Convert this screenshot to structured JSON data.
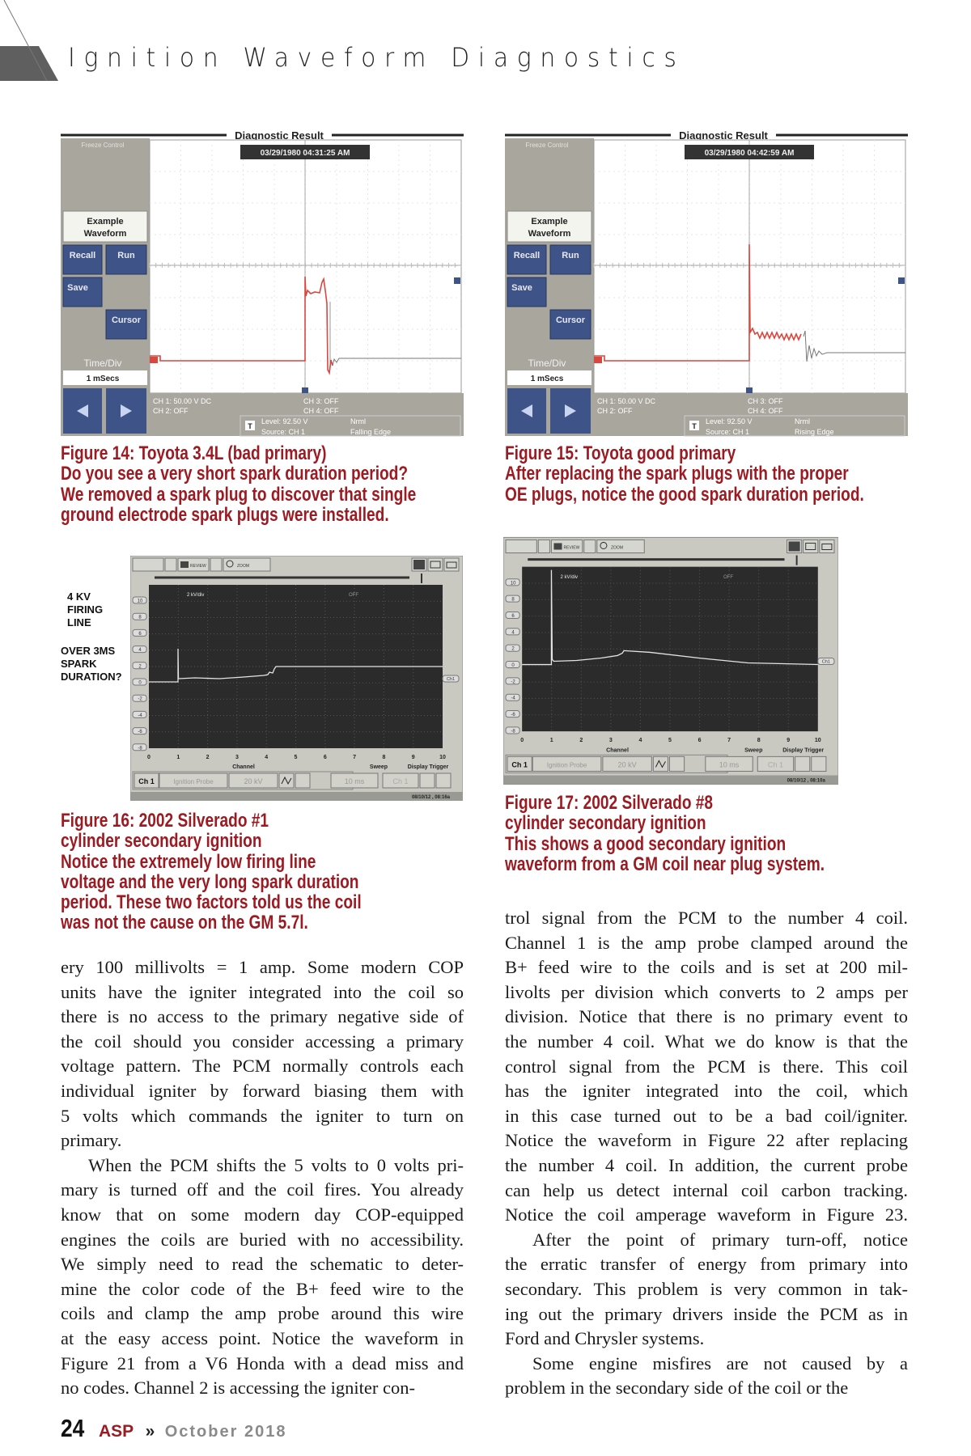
{
  "header": {
    "title": "Ignition Waveform Diagnostics"
  },
  "figures": {
    "fig14": {
      "caption": [
        "Figure 14: Toyota 3.4L (bad primary)",
        "Do you see a very short spark duration period?",
        "We removed a spark plug to discover that single",
        "ground electrode spark plugs were installed."
      ],
      "scope": {
        "header": "Diagnostic Result",
        "freeze": "Freeze Control",
        "timestamp": "03/29/1980 04:31:25 AM",
        "example1": "Example",
        "example2": "Waveform",
        "recall": "Recall",
        "run": "Run",
        "save": "Save",
        "cursor": "Cursor",
        "timediv": "Time/Div",
        "timediv_value": "1 mSecs",
        "ch1": "CH 1: 50.00 V DC",
        "ch2": "CH 2: OFF",
        "ch3": "CH 3: OFF",
        "ch4": "CH 4: OFF",
        "trig_icon": "T",
        "level": "Level: 92.50 V",
        "source": "Source: CH 1",
        "mode": "Nrml",
        "edge": "Falling Edge"
      }
    },
    "fig15": {
      "caption": [
        "Figure 15: Toyota good primary",
        "After replacing the spark plugs with the proper",
        "OE plugs, notice the good spark duration period."
      ],
      "scope": {
        "header": "Diagnostic Result",
        "freeze": "Freeze Control",
        "timestamp": "03/29/1980 04:42:59 AM",
        "example1": "Example",
        "example2": "Waveform",
        "recall": "Recall",
        "run": "Run",
        "save": "Save",
        "cursor": "Cursor",
        "timediv": "Time/Div",
        "timediv_value": "1 mSecs",
        "ch1": "CH 1: 50.00 V DC",
        "ch2": "CH 2: OFF",
        "ch3": "CH 3: OFF",
        "ch4": "CH 4: OFF",
        "trig_icon": "T",
        "level": "Level: 92.50 V",
        "source": "Source: CH 1",
        "mode": "Nrml",
        "edge": "Rising Edge"
      }
    },
    "fig16": {
      "notes": [
        [
          "4 KV",
          "FIRING",
          "LINE"
        ],
        [
          "OVER 3MS",
          "SPARK",
          "DURATION?"
        ]
      ],
      "caption": [
        "Figure 16: 2002 Silverado #1",
        "cylinder secondary ignition",
        "Notice the extremely low firing line",
        "voltage and the very long spark duration",
        "period. These two factors told us the coil",
        "was not the cause on the GM 5.7l."
      ],
      "scope": {
        "review": "REVIEW",
        "zoom": "ZOOM",
        "scale": "2 kV/div",
        "off": "OFF",
        "ch_marker": "Ch1",
        "x_ticks": [
          "0",
          "1",
          "2",
          "3",
          "4",
          "5",
          "6",
          "7",
          "8",
          "9",
          "10"
        ],
        "y_ticks": [
          "10",
          "8",
          "6",
          "4",
          "2",
          "0",
          "-2",
          "-4",
          "-6",
          "-8"
        ],
        "channel": "Channel",
        "sweep": "Sweep",
        "display_trigger": "Display Trigger",
        "ch_button": "Ch 1",
        "probe": "Ignition Probe",
        "range": "20 kV",
        "sweep_value": "10 ms",
        "trigger_ch": "Ch 1",
        "status": "08/10/12 , 08:16a"
      }
    },
    "fig17": {
      "caption": [
        "Figure 17: 2002 Silverado #8",
        "cylinder secondary ignition",
        "This shows a good secondary ignition",
        "waveform from a GM coil near plug system."
      ],
      "scope": {
        "review": "REVIEW",
        "zoom": "ZOOM",
        "scale": "2 kV/div",
        "off": "OFF",
        "ch_marker": "Ch1",
        "x_ticks": [
          "0",
          "1",
          "2",
          "3",
          "4",
          "5",
          "6",
          "7",
          "8",
          "9",
          "10"
        ],
        "y_ticks": [
          "10",
          "8",
          "6",
          "4",
          "2",
          "0",
          "-2",
          "-4",
          "-6",
          "-8"
        ],
        "channel": "Channel",
        "sweep": "Sweep",
        "display_trigger": "Display Trigger",
        "ch_button": "Ch 1",
        "probe": "Ignition Probe",
        "range": "20 kV",
        "sweep_value": "10 ms",
        "trigger_ch": "Ch 1",
        "status": "08/10/12 , 08:10a"
      }
    }
  },
  "body": {
    "left": [
      "ery 100 millivolts = 1 amp. Some modern COP",
      "units have the igniter integrated into the coil so",
      "there is no access to the primary negative side of",
      "the coil should you consider accessing a primary",
      "voltage pattern. The PCM normally controls each",
      "individual igniter by forward biasing them with",
      "5 volts which commands the igniter to turn on",
      "primary.",
      "When the PCM shifts the 5 volts to 0 volts pri-",
      "mary is turned off and the coil fires. You already",
      "know that on some modern day COP-equipped",
      "engines the coils are buried with no accessibility.",
      "We simply need to read the schematic to deter-",
      "mine the color code of the B+ feed wire to the",
      "coils and clamp the amp probe around this wire",
      "at the easy access point. Notice the waveform in",
      "Figure 21 from a V6 Honda with a dead miss and",
      "no codes. Channel 2 is accessing the igniter con-"
    ],
    "right": [
      "trol signal from the PCM to the number 4 coil.",
      "Channel 1 is the amp probe clamped around the",
      "B+ feed wire to the coils and is set at 200 mil-",
      "livolts per division which converts to 2 amps per",
      "division. Notice that there is no primary event to",
      "the number 4 coil. What we do know is that the",
      "control signal from the PCM is there. This coil",
      "has the igniter integrated into the coil, which",
      "in this case turned out to be a bad coil/igniter.",
      "Notice the waveform in Figure 22 after replacing",
      "the number 4 coil. In addition, the current probe",
      "can help us detect internal coil carbon tracking.",
      "Notice the coil amperage waveform in Figure 23.",
      "After the point of primary turn-off, notice",
      "the erratic transfer of energy from primary into",
      "secondary. This problem is very common in tak-",
      "ing out the primary drivers inside the PCM as in",
      "Ford and Chrysler systems.",
      "Some engine misfires are not caused by a",
      "problem in the secondary side of the coil or the"
    ]
  },
  "footer": {
    "page": "24",
    "magazine": "ASP",
    "separator": "»",
    "issue": "October 2018"
  },
  "colors": {
    "caption_red": "#9c1b22",
    "trace_red": "#d9473f",
    "scope_button_blue": "#3e5488",
    "header_gray": "#5f5f5f"
  }
}
